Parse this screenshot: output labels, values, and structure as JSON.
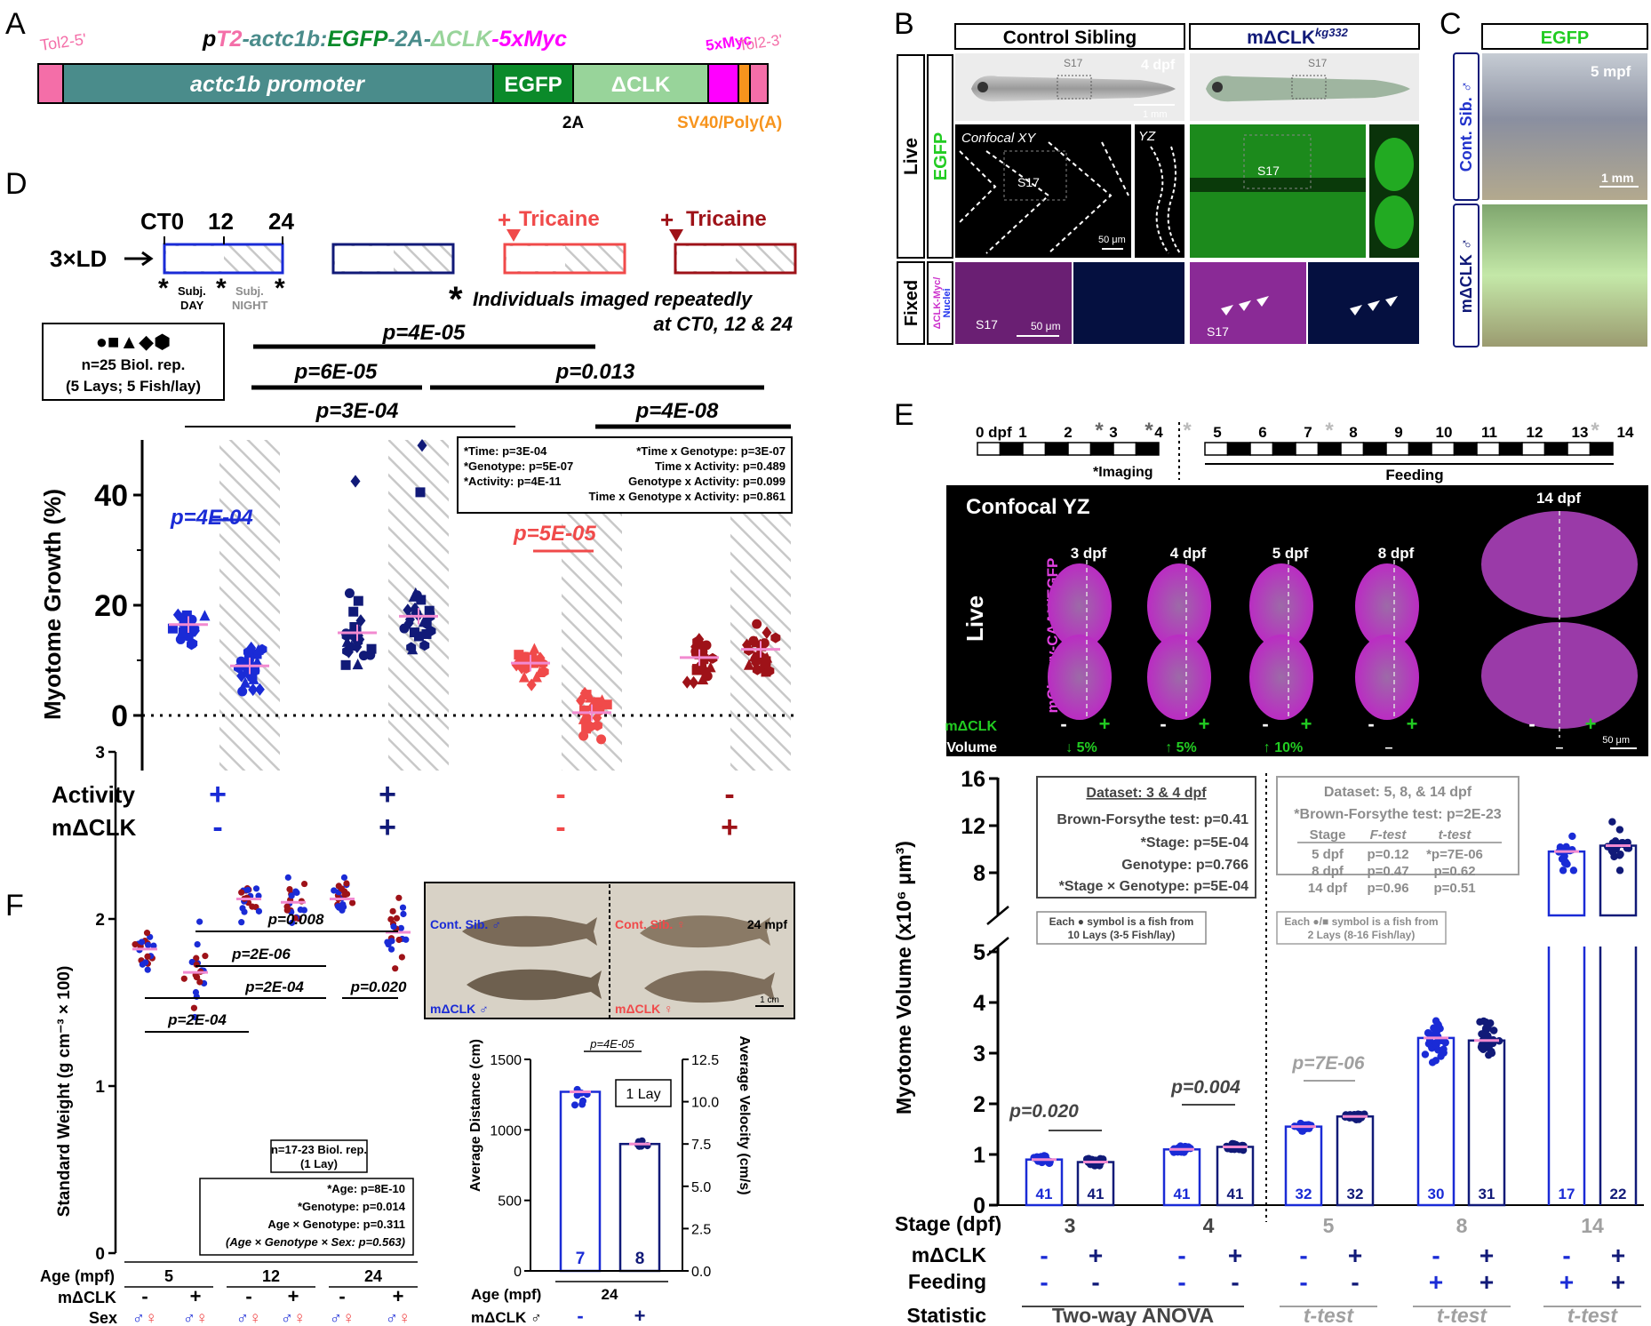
{
  "panel_letters": [
    "A",
    "B",
    "C",
    "D",
    "E",
    "F"
  ],
  "colors": {
    "blue": "#1a2bd6",
    "navy": "#111a78",
    "red": "#f04a4a",
    "darkred": "#9e1218",
    "teal": "#4a8c8b",
    "egfp": "#0b8a2a",
    "dclk": "#98d49a",
    "myc": "#ff00ff",
    "tol2": "#f46ea8",
    "sv40": "#f7941d",
    "magenta": "#cc33cc",
    "pink_mean": "#f28ad0",
    "gray": "#8c8c8c"
  },
  "panel_a": {
    "construct_prefix": "p",
    "construct_t2": "T2",
    "construct_actc1b": "-actc1b:",
    "construct_egfp": "EGFP",
    "construct_2a": "-2A-",
    "construct_dclk": "ΔCLK",
    "construct_myc": "-5xMyc",
    "tol2_5": "Tol2-5'",
    "promoter": "actc1b promoter",
    "egfp": "EGFP",
    "dclk": "ΔCLK",
    "myc": "5xMyc",
    "tol2_3": "Tol2-3'",
    "twoA": "2A",
    "sv40": "SV40/Poly(A)"
  },
  "panel_b": {
    "control": "Control Sibling",
    "mutant": "mΔCLK",
    "mutant_sup": "kg332",
    "live": "Live",
    "egfp": "EGFP",
    "fixed": "Fixed",
    "fixed_label": "ΔCLK-Myc/",
    "fixed_label2": "Nuclei",
    "s17": "S17",
    "dpf": "4 dpf",
    "scale_1mm": "1 mm",
    "confocal": "Confocal XY",
    "yz": "YZ",
    "scale_50": "50 μm"
  },
  "panel_c": {
    "egfp": "EGFP",
    "mpf": "5 mpf",
    "cont": "Cont. Sib. ♂",
    "mdclk": "mΔCLK ♂",
    "scale": "1 mm"
  },
  "panel_d": {
    "ct0": "CT0",
    "t12": "12",
    "t24": "24",
    "ld": "3×LD",
    "subj_day": "Subj.",
    "day": "DAY",
    "subj_night": "Subj.",
    "night": "NIGHT",
    "tricaine": "Tricaine",
    "plus": "+",
    "imaged1": "Individuals imaged repeatedly",
    "imaged2": "at CT0, 12 & 24",
    "legend_symbols": "●■▲◆⬢",
    "n_line1": "n=25 Biol. rep.",
    "n_line2": "(5 Lays; 5 Fish/lay)",
    "p1": "p=4E-05",
    "p2": "p=6E-05",
    "p3": "p=0.013",
    "p4": "p=3E-04",
    "p5": "p=4E-08",
    "p_blue": "p=4E-04",
    "p_red": "p=5E-05",
    "stats_l": [
      "*Time: p=3E-04",
      "*Genotype: p=5E-07",
      "*Activity: p=4E-11"
    ],
    "stats_r": [
      "*Time x Genotype: p=3E-07",
      "Time x Activity: p=0.489",
      "Genotype x Activity: p=0.099",
      "Time x Genotype x Activity: p=0.861"
    ],
    "ylabel": "Myotome Growth (%)",
    "activity": "Activity",
    "mdclk": "mΔCLK",
    "activity_signs": [
      "+",
      "+",
      "-",
      "-"
    ],
    "mdclk_signs": [
      "-",
      "+",
      "-",
      "+"
    ]
  },
  "panel_e": {
    "timeline_days": [
      "0 dpf",
      "1",
      "2",
      "3",
      "4",
      "5",
      "6",
      "7",
      "8",
      "9",
      "10",
      "11",
      "12",
      "13",
      "14"
    ],
    "imaging": "*Imaging",
    "feeding": "Feeding",
    "confocal": "Confocal YZ",
    "live": "Live",
    "stain": "mCherry-CAAX/EGFP",
    "stages": [
      "3 dpf",
      "4 dpf",
      "5 dpf",
      "8 dpf",
      "14 dpf"
    ],
    "mdclk": "mΔCLK",
    "dvol": "ΔVolume",
    "dvol_vals": [
      "↓ 5%",
      "↑ 5%",
      "↑ 10%",
      "–"
    ],
    "scale": "50 μm",
    "ylabel": "Myotome Volume (x10⁶ μm³)",
    "box1": {
      "title": "Dataset: 3 & 4 dpf",
      "lines": [
        "Brown-Forsythe test: p=0.41",
        "*Stage: p=5E-04",
        "Genotype: p=0.766",
        "*Stage × Genotype: p=5E-04"
      ]
    },
    "box2": {
      "title": "Dataset: 5, 8, & 14 dpf",
      "line1": "*Brown-Forsythe test: p=2E-23",
      "head": [
        "Stage",
        "F-test",
        "t-test"
      ],
      "rows": [
        [
          "5 dpf",
          "p=0.12",
          "*p=7E-06"
        ],
        [
          "8 dpf",
          "p=0.47",
          "p=0.62"
        ],
        [
          "14 dpf",
          "p=0.96",
          "p=0.51"
        ]
      ]
    },
    "note1": [
      "Each ● symbol is a fish from",
      "10 Lays (3-5 Fish/lay)"
    ],
    "note2": [
      "Each ●/■ symbol is a fish from",
      "2 Lays (8-16 Fish/lay)"
    ],
    "p_3": "p=0.020",
    "p_4": "p=0.004",
    "p_5": "p=7E-06",
    "stage_label": "Stage (dpf)",
    "mdclk_label": "mΔCLK",
    "feeding_label": "Feeding",
    "statistic_label": "Statistic",
    "stage_vals": [
      "3",
      "4",
      "5",
      "8",
      "14"
    ],
    "stats": [
      "Two-way ANOVA",
      "t-test",
      "t-test",
      "t-test"
    ]
  },
  "panel_f": {
    "p1": "p=0.008",
    "p2": "p=2E-06",
    "p3": "p=2E-04",
    "p4": "p=2E-04",
    "p5": "p=0.020",
    "ylabel": "Standard Weight (g cm⁻³ × 100)",
    "n_line1": "n=17-23 Biol. rep.",
    "n_line2": "(1 Lay)",
    "stats": [
      "*Age: p=8E-10",
      "*Genotype: p=0.014",
      "Age × Genotype: p=0.311",
      "(Age × Genotype × Sex: p=0.563)"
    ],
    "age_label": "Age (mpf)",
    "mdclk_label": "mΔCLK",
    "sex_label": "Sex",
    "ages": [
      "5",
      "12",
      "24"
    ],
    "mdclk_signs": [
      "-",
      "+",
      "-",
      "+",
      "-",
      "+"
    ],
    "sex": "♂♀",
    "photo_cont": "Cont. Sib. ♂",
    "photo_cont_f": "Cont. Sib. ♀",
    "photo_mpf": "24 mpf",
    "photo_mdclk": "mΔCLK ♂",
    "photo_mdclk_f": "mΔCLK ♀",
    "photo_scale": "1 cm",
    "p_dist": "p=4E-05",
    "lay": "1 Lay",
    "ylabel_l": "Average Distance (cm)",
    "ylabel_r": "Average Velocity (cm/s)",
    "bar_age": "Age (mpf)",
    "bar_age_val": "24",
    "bar_mdclk": "mΔCLK ♂",
    "bar_signs": [
      "-",
      "+"
    ]
  },
  "chart_data": [
    {
      "type": "scatter",
      "panel": "D",
      "ylabel": "Myotome Growth (%)",
      "ylim": [
        -10,
        50
      ],
      "yticks": [
        0,
        20,
        40
      ],
      "groups": [
        {
          "activity": "+",
          "mdclk": "-",
          "day_mean": 16.5,
          "night_mean": 9
        },
        {
          "activity": "+",
          "mdclk": "+",
          "day_mean": 15,
          "night_mean": 18
        },
        {
          "activity": "-",
          "mdclk": "-",
          "day_mean": 9.5,
          "night_mean": 0.5
        },
        {
          "activity": "-",
          "mdclk": "+",
          "day_mean": 10.5,
          "night_mean": 12
        }
      ]
    },
    {
      "type": "bar",
      "panel": "E",
      "ylabel": "Myotome Volume (x10⁶ μm³)",
      "categories": [
        "3",
        "3",
        "4",
        "4",
        "5",
        "5",
        "8",
        "8",
        "14",
        "14"
      ],
      "mdclk": [
        "-",
        "+",
        "-",
        "+",
        "-",
        "+",
        "-",
        "+",
        "-",
        "+"
      ],
      "values": [
        0.9,
        0.85,
        1.1,
        1.15,
        1.55,
        1.75,
        3.3,
        3.25,
        9.8,
        10.3
      ],
      "n": [
        41,
        41,
        41,
        41,
        32,
        32,
        30,
        31,
        17,
        22
      ],
      "yticks": [
        0,
        1,
        2,
        3,
        4,
        5,
        8,
        12,
        16
      ]
    },
    {
      "type": "scatter",
      "panel": "F",
      "ylabel": "Standard Weight (g cm⁻³ × 100)",
      "ylim": [
        0,
        3
      ],
      "categories": [
        "5 -",
        "5 +",
        "12 -",
        "12 +",
        "24 -",
        "24 +"
      ],
      "means": [
        1.82,
        1.68,
        2.12,
        2.1,
        2.12,
        1.92
      ]
    },
    {
      "type": "bar",
      "panel": "F",
      "ylabel": "Average Distance (cm)",
      "ylim": [
        0,
        1500
      ],
      "categories": [
        "-",
        "+"
      ],
      "values": [
        1270,
        900
      ],
      "n": [
        7,
        8
      ],
      "y2label": "Average Velocity (cm/s)",
      "y2lim": [
        0,
        12.5
      ]
    }
  ]
}
